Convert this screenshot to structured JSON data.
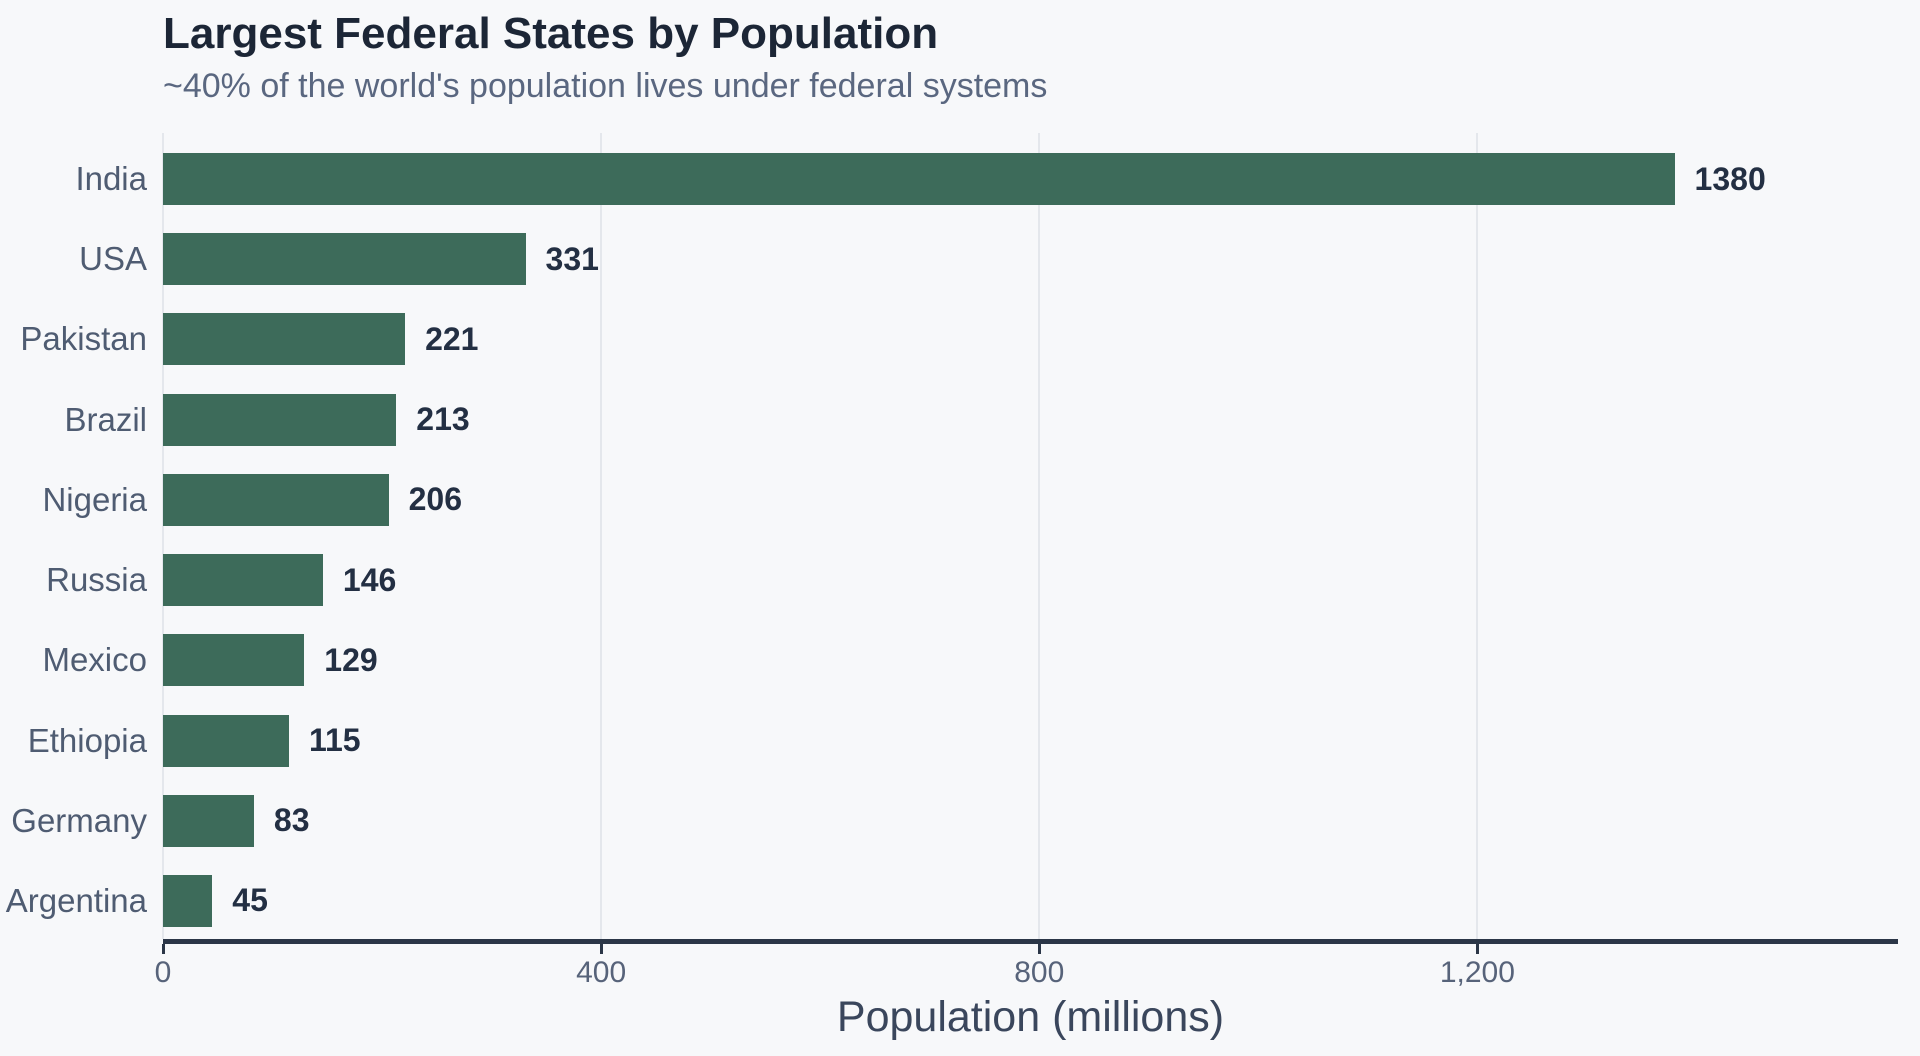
{
  "chart": {
    "title": "Largest Federal States by Population",
    "subtitle": "~40% of the world's population lives under federal systems",
    "xlabel": "Population (millions)"
  },
  "chart_data": {
    "type": "bar",
    "orientation": "horizontal",
    "title": "Largest Federal States by Population",
    "subtitle": "~40% of the world's population lives under federal systems",
    "xlabel": "Population (millions)",
    "ylabel": "",
    "categories": [
      "India",
      "USA",
      "Pakistan",
      "Brazil",
      "Nigeria",
      "Russia",
      "Mexico",
      "Ethiopia",
      "Germany",
      "Argentina"
    ],
    "values": [
      1380,
      331,
      221,
      213,
      206,
      146,
      129,
      115,
      83,
      45
    ],
    "value_labels": [
      "1380",
      "331",
      "221",
      "213",
      "206",
      "146",
      "129",
      "115",
      "83",
      "45"
    ],
    "xlim": [
      0,
      1584
    ],
    "xticks": [
      0,
      400,
      800,
      1200
    ],
    "xtick_labels": [
      "0",
      "400",
      "800",
      "1,200"
    ],
    "grid": true,
    "legend": false,
    "bar_color": "#3d6b5a"
  },
  "colors": {
    "background": "#f7f8fa",
    "bar": "#3d6b5a",
    "axis_line": "#2b3647",
    "gridline": "#e4e7ec",
    "title_text": "#1c2636",
    "subtitle_text": "#5a6780",
    "category_text": "#4f5c72",
    "value_text": "#232f43",
    "tick_text": "#57637a",
    "axis_title_text": "#3a465c"
  }
}
